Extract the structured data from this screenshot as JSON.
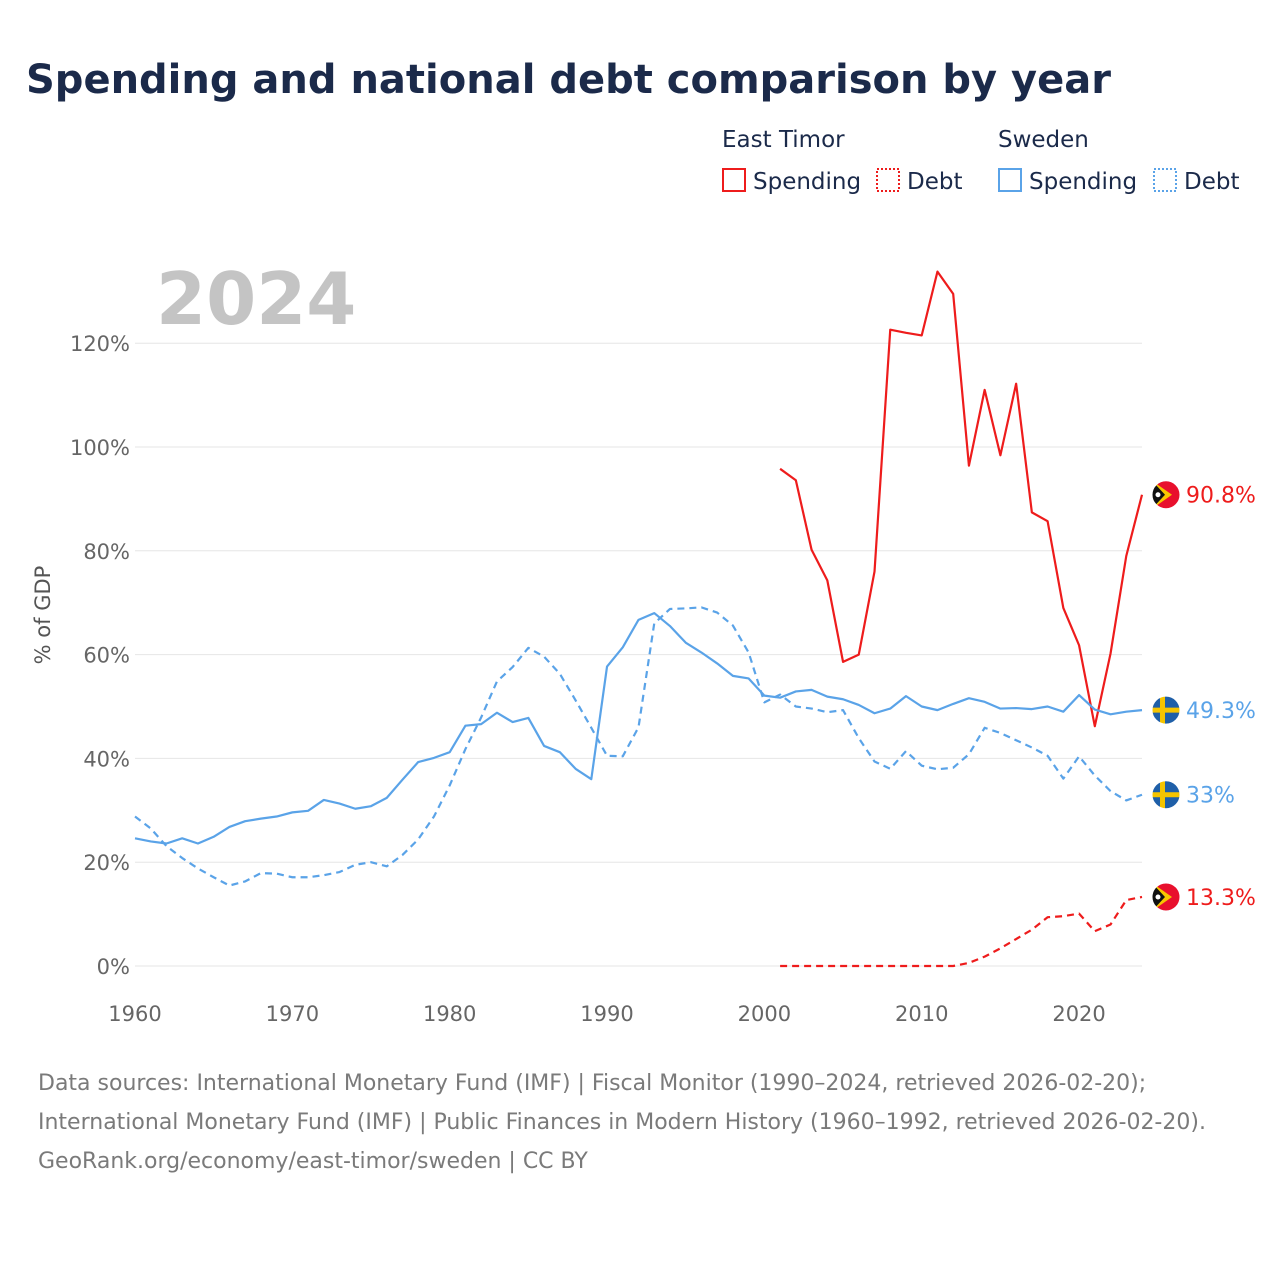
{
  "title": "Spending and national debt comparison by year",
  "year_watermark": "2024",
  "legend": {
    "groups": [
      {
        "country": "East Timor",
        "items": [
          "Spending",
          "Debt"
        ]
      },
      {
        "country": "Sweden",
        "items": [
          "Spending",
          "Debt"
        ]
      }
    ]
  },
  "colors": {
    "east_timor": "#ee1c1c",
    "sweden": "#5aa3e8"
  },
  "footer": {
    "sources": "Data sources: International Monetary Fund (IMF) | Fiscal Monitor (1990–2024, retrieved 2026-02-20); International Monetary Fund (IMF) | Public Finances in Modern History (1960–1992, retrieved 2026-02-20).",
    "credit": "GeoRank.org/economy/east-timor/sweden | CC BY"
  },
  "chart_data": {
    "type": "line",
    "ylabel": "% of GDP",
    "xlabel": "",
    "xlim": [
      1960,
      2024
    ],
    "ylim": [
      0,
      130
    ],
    "x_ticks": [
      1960,
      1970,
      1980,
      1990,
      2000,
      2010,
      2020
    ],
    "y_ticks": [
      0,
      20,
      40,
      60,
      80,
      100,
      120
    ],
    "y_tick_labels": [
      "0%",
      "20%",
      "40%",
      "60%",
      "80%",
      "100%",
      "120%"
    ],
    "series": [
      {
        "name": "East Timor Spending",
        "country": "East Timor",
        "metric": "Spending",
        "style": "solid",
        "color": "#ee1c1c",
        "end_label": "90.8%",
        "x": [
          2001,
          2002,
          2003,
          2004,
          2005,
          2006,
          2007,
          2008,
          2009,
          2010,
          2011,
          2012,
          2013,
          2014,
          2015,
          2016,
          2017,
          2018,
          2019,
          2020,
          2021,
          2022,
          2023,
          2024
        ],
        "values": [
          95.8,
          93.6,
          80.2,
          74.3,
          58.6,
          60.0,
          76.0,
          122.6,
          122.0,
          121.5,
          133.8,
          129.5,
          96.4,
          111.0,
          98.4,
          112.2,
          87.4,
          85.7,
          69.0,
          61.8,
          46.2,
          60.2,
          79.0,
          90.8
        ]
      },
      {
        "name": "East Timor Debt",
        "country": "East Timor",
        "metric": "Debt",
        "style": "dashed",
        "color": "#ee1c1c",
        "end_label": "13.3%",
        "x": [
          2001,
          2002,
          2003,
          2004,
          2005,
          2006,
          2007,
          2008,
          2009,
          2010,
          2011,
          2012,
          2013,
          2014,
          2015,
          2016,
          2017,
          2018,
          2019,
          2020,
          2021,
          2022,
          2023,
          2024
        ],
        "values": [
          0,
          0,
          0,
          0,
          0,
          0,
          0,
          0,
          0,
          0,
          0,
          0,
          0.6,
          1.8,
          3.4,
          5.2,
          7.0,
          9.4,
          9.6,
          10.1,
          6.7,
          8.0,
          12.7,
          13.3
        ]
      },
      {
        "name": "Sweden Spending",
        "country": "Sweden",
        "metric": "Spending",
        "style": "solid",
        "color": "#5aa3e8",
        "end_label": "49.3%",
        "x": [
          1960,
          1961,
          1962,
          1963,
          1964,
          1965,
          1966,
          1967,
          1968,
          1969,
          1970,
          1971,
          1972,
          1973,
          1974,
          1975,
          1976,
          1977,
          1978,
          1979,
          1980,
          1981,
          1982,
          1983,
          1984,
          1985,
          1986,
          1987,
          1988,
          1989,
          1990,
          1991,
          1992,
          1993,
          1994,
          1995,
          1996,
          1997,
          1998,
          1999,
          2000,
          2001,
          2002,
          2003,
          2004,
          2005,
          2006,
          2007,
          2008,
          2009,
          2010,
          2011,
          2012,
          2013,
          2014,
          2015,
          2016,
          2017,
          2018,
          2019,
          2020,
          2021,
          2022,
          2023,
          2024
        ],
        "values": [
          24.6,
          24.0,
          23.6,
          24.6,
          23.6,
          24.9,
          26.8,
          27.9,
          28.4,
          28.8,
          29.6,
          29.9,
          32.0,
          31.3,
          30.3,
          30.8,
          32.4,
          35.9,
          39.3,
          40.1,
          41.2,
          46.3,
          46.6,
          48.8,
          47.0,
          47.8,
          42.4,
          41.2,
          38.0,
          36.0,
          57.7,
          61.4,
          66.7,
          68.0,
          65.5,
          62.3,
          60.4,
          58.3,
          55.9,
          55.4,
          52.1,
          51.7,
          52.9,
          53.2,
          51.9,
          51.4,
          50.3,
          48.7,
          49.6,
          52.0,
          50.0,
          49.3,
          50.5,
          51.6,
          50.9,
          49.6,
          49.7,
          49.5,
          50.0,
          49.0,
          52.2,
          49.4,
          48.5,
          49.0,
          49.3
        ]
      },
      {
        "name": "Sweden Debt",
        "country": "Sweden",
        "metric": "Debt",
        "style": "dashed",
        "color": "#5aa3e8",
        "end_label": "33%",
        "x": [
          1960,
          1961,
          1962,
          1963,
          1964,
          1965,
          1966,
          1967,
          1968,
          1969,
          1970,
          1971,
          1972,
          1973,
          1974,
          1975,
          1976,
          1977,
          1978,
          1979,
          1980,
          1981,
          1982,
          1983,
          1984,
          1985,
          1986,
          1987,
          1988,
          1989,
          1990,
          1991,
          1992,
          1993,
          1994,
          1995,
          1996,
          1997,
          1998,
          1999,
          2000,
          2001,
          2002,
          2003,
          2004,
          2005,
          2006,
          2007,
          2008,
          2009,
          2010,
          2011,
          2012,
          2013,
          2014,
          2015,
          2016,
          2017,
          2018,
          2019,
          2020,
          2021,
          2022,
          2023,
          2024
        ],
        "values": [
          28.8,
          26.5,
          23.1,
          20.8,
          18.8,
          17.1,
          15.5,
          16.3,
          17.9,
          17.8,
          17.1,
          17.1,
          17.5,
          18.1,
          19.5,
          20.0,
          19.2,
          21.4,
          24.4,
          28.8,
          34.8,
          41.8,
          47.9,
          54.8,
          57.6,
          61.3,
          59.6,
          56.3,
          51.2,
          45.9,
          40.5,
          40.4,
          46.0,
          66.0,
          68.8,
          68.9,
          69.1,
          68.1,
          65.6,
          60.4,
          50.8,
          52.3,
          50.0,
          49.6,
          48.9,
          49.3,
          43.9,
          39.4,
          38.0,
          41.4,
          38.6,
          37.9,
          38.2,
          40.8,
          45.9,
          44.9,
          43.5,
          42.1,
          40.5,
          36.1,
          40.4,
          36.7,
          33.7,
          31.9,
          33.0
        ]
      }
    ]
  }
}
